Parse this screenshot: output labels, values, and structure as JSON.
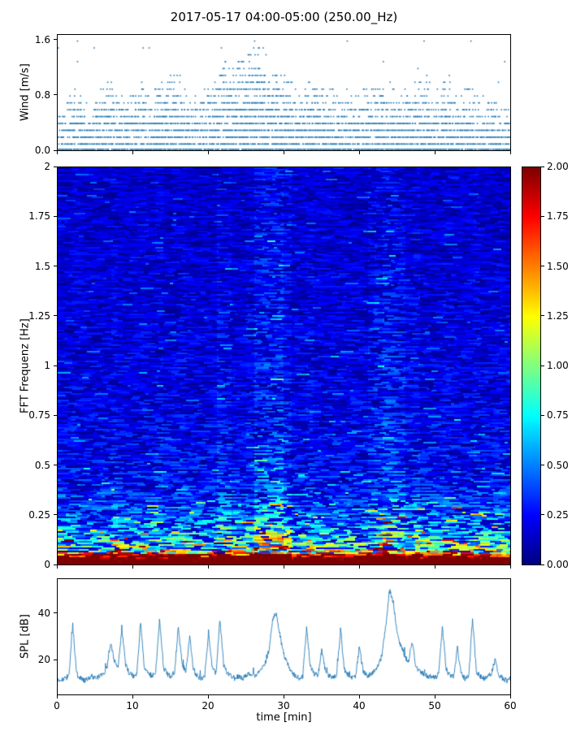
{
  "title": "2017-05-17 04:00-05:00 (250.00_Hz)",
  "colors": {
    "marker": "#1f77b4",
    "line": "#1f77b4",
    "axis": "#000000",
    "background": "#ffffff"
  },
  "xaxis": {
    "label": "time [min]",
    "lim": [
      0,
      60
    ],
    "ticks": [
      {
        "v": 0,
        "label": "0"
      },
      {
        "v": 10,
        "label": "10"
      },
      {
        "v": 20,
        "label": "20"
      },
      {
        "v": 30,
        "label": "30"
      },
      {
        "v": 40,
        "label": "40"
      },
      {
        "v": 50,
        "label": "50"
      },
      {
        "v": 60,
        "label": "60"
      }
    ]
  },
  "chart_data": [
    {
      "type": "scatter",
      "ylabel": "Wind [m/s]",
      "ylim": [
        0,
        1.68
      ],
      "yticks": [
        {
          "v": 0.0,
          "label": "0.0"
        },
        {
          "v": 0.8,
          "label": "0.8"
        },
        {
          "v": 1.6,
          "label": "1.6"
        }
      ],
      "marker_color": "#1f77b4",
      "level_step": 0.1,
      "envelope_per_min": [
        0.6,
        0.7,
        1.0,
        0.9,
        0.6,
        0.8,
        1.0,
        1.0,
        0.9,
        0.8,
        0.9,
        1.0,
        0.8,
        1.1,
        1.0,
        1.1,
        1.1,
        0.9,
        0.8,
        1.0,
        0.9,
        1.2,
        1.3,
        1.2,
        1.3,
        1.4,
        1.6,
        1.5,
        1.3,
        1.2,
        1.1,
        1.0,
        0.8,
        1.0,
        1.1,
        1.0,
        0.9,
        1.0,
        1.0,
        0.8,
        0.9,
        0.9,
        1.0,
        0.9,
        1.0,
        0.8,
        0.9,
        1.0,
        1.0,
        1.1,
        0.9,
        1.0,
        1.1,
        0.8,
        0.9,
        1.0,
        0.7,
        0.8,
        0.7,
        0.6
      ]
    },
    {
      "type": "heatmap",
      "ylabel": "FFT Frequenz [Hz]",
      "ylim": [
        0,
        2
      ],
      "yticks": [
        {
          "v": 2,
          "label": "2"
        },
        {
          "v": 1.75,
          "label": "1.75"
        },
        {
          "v": 1.5,
          "label": "1.5"
        },
        {
          "v": 1.25,
          "label": "1.25"
        },
        {
          "v": 1,
          "label": "1"
        },
        {
          "v": 0.75,
          "label": "0.75"
        },
        {
          "v": 0.5,
          "label": "0.5"
        },
        {
          "v": 0.25,
          "label": "0.25"
        },
        {
          "v": 0,
          "label": "0"
        }
      ],
      "colormap": "jet",
      "clim": [
        0,
        2
      ],
      "colorbar_ticks": [
        {
          "v": 2.0,
          "label": "2.00"
        },
        {
          "v": 1.75,
          "label": "1.75"
        },
        {
          "v": 1.5,
          "label": "1.50"
        },
        {
          "v": 1.25,
          "label": "1.25"
        },
        {
          "v": 1.0,
          "label": "1.00"
        },
        {
          "v": 0.75,
          "label": "0.75"
        },
        {
          "v": 0.5,
          "label": "0.50"
        },
        {
          "v": 0.25,
          "label": "0.25"
        },
        {
          "v": 0.0,
          "label": "0.00"
        }
      ],
      "freq_profile": [
        [
          0,
          2.6
        ],
        [
          0.03,
          2.4
        ],
        [
          0.05,
          1.7
        ],
        [
          0.08,
          1.15
        ],
        [
          0.12,
          0.9
        ],
        [
          0.18,
          0.68
        ],
        [
          0.25,
          0.52
        ],
        [
          0.35,
          0.4
        ],
        [
          0.5,
          0.32
        ],
        [
          0.75,
          0.27
        ],
        [
          1.0,
          0.25
        ],
        [
          1.5,
          0.22
        ],
        [
          2.0,
          0.2
        ]
      ],
      "time_profile": [
        1.0,
        1.0,
        1.05,
        1.0,
        1.0,
        1.0,
        1.0,
        1.1,
        1.0,
        1.0,
        1.0,
        1.05,
        1.0,
        1.1,
        1.0,
        1.05,
        1.1,
        1.0,
        1.0,
        1.0,
        1.0,
        1.25,
        1.2,
        1.0,
        1.0,
        1.1,
        1.45,
        1.55,
        1.5,
        1.6,
        1.3,
        1.0,
        1.0,
        1.1,
        1.0,
        1.0,
        1.0,
        1.05,
        1.0,
        1.0,
        1.0,
        1.2,
        1.3,
        1.5,
        1.45,
        1.35,
        1.15,
        1.2,
        1.0,
        1.0,
        1.0,
        1.1,
        1.05,
        1.0,
        1.0,
        1.1,
        1.0,
        1.0,
        1.05,
        1.0
      ]
    },
    {
      "type": "line",
      "ylabel": "SPL [dB]",
      "ylim": [
        5,
        55
      ],
      "yticks": [
        {
          "v": 20,
          "label": "20"
        },
        {
          "v": 40,
          "label": "40"
        }
      ],
      "line_color": "#1f77b4",
      "x_start": 0,
      "x_step": 0.5,
      "values": [
        12,
        11,
        12,
        13,
        35,
        14,
        12,
        11,
        12,
        13,
        12,
        13,
        14,
        16,
        27,
        20,
        16,
        34,
        18,
        14,
        13,
        14,
        37,
        16,
        14,
        13,
        15,
        38,
        17,
        14,
        13,
        15,
        34,
        18,
        15,
        30,
        16,
        13,
        12,
        13,
        32,
        16,
        14,
        38,
        18,
        14,
        13,
        12,
        13,
        12,
        13,
        14,
        13,
        14,
        16,
        18,
        24,
        38,
        40,
        30,
        22,
        18,
        15,
        13,
        12,
        13,
        34,
        17,
        14,
        13,
        24,
        15,
        13,
        12,
        14,
        33,
        16,
        13,
        12,
        13,
        26,
        15,
        13,
        14,
        15,
        17,
        22,
        35,
        50,
        45,
        32,
        26,
        22,
        19,
        28,
        17,
        15,
        14,
        13,
        13,
        12,
        14,
        35,
        16,
        13,
        13,
        25,
        14,
        12,
        13,
        38,
        15,
        13,
        12,
        13,
        14,
        20,
        13,
        12,
        11,
        12
      ]
    }
  ]
}
